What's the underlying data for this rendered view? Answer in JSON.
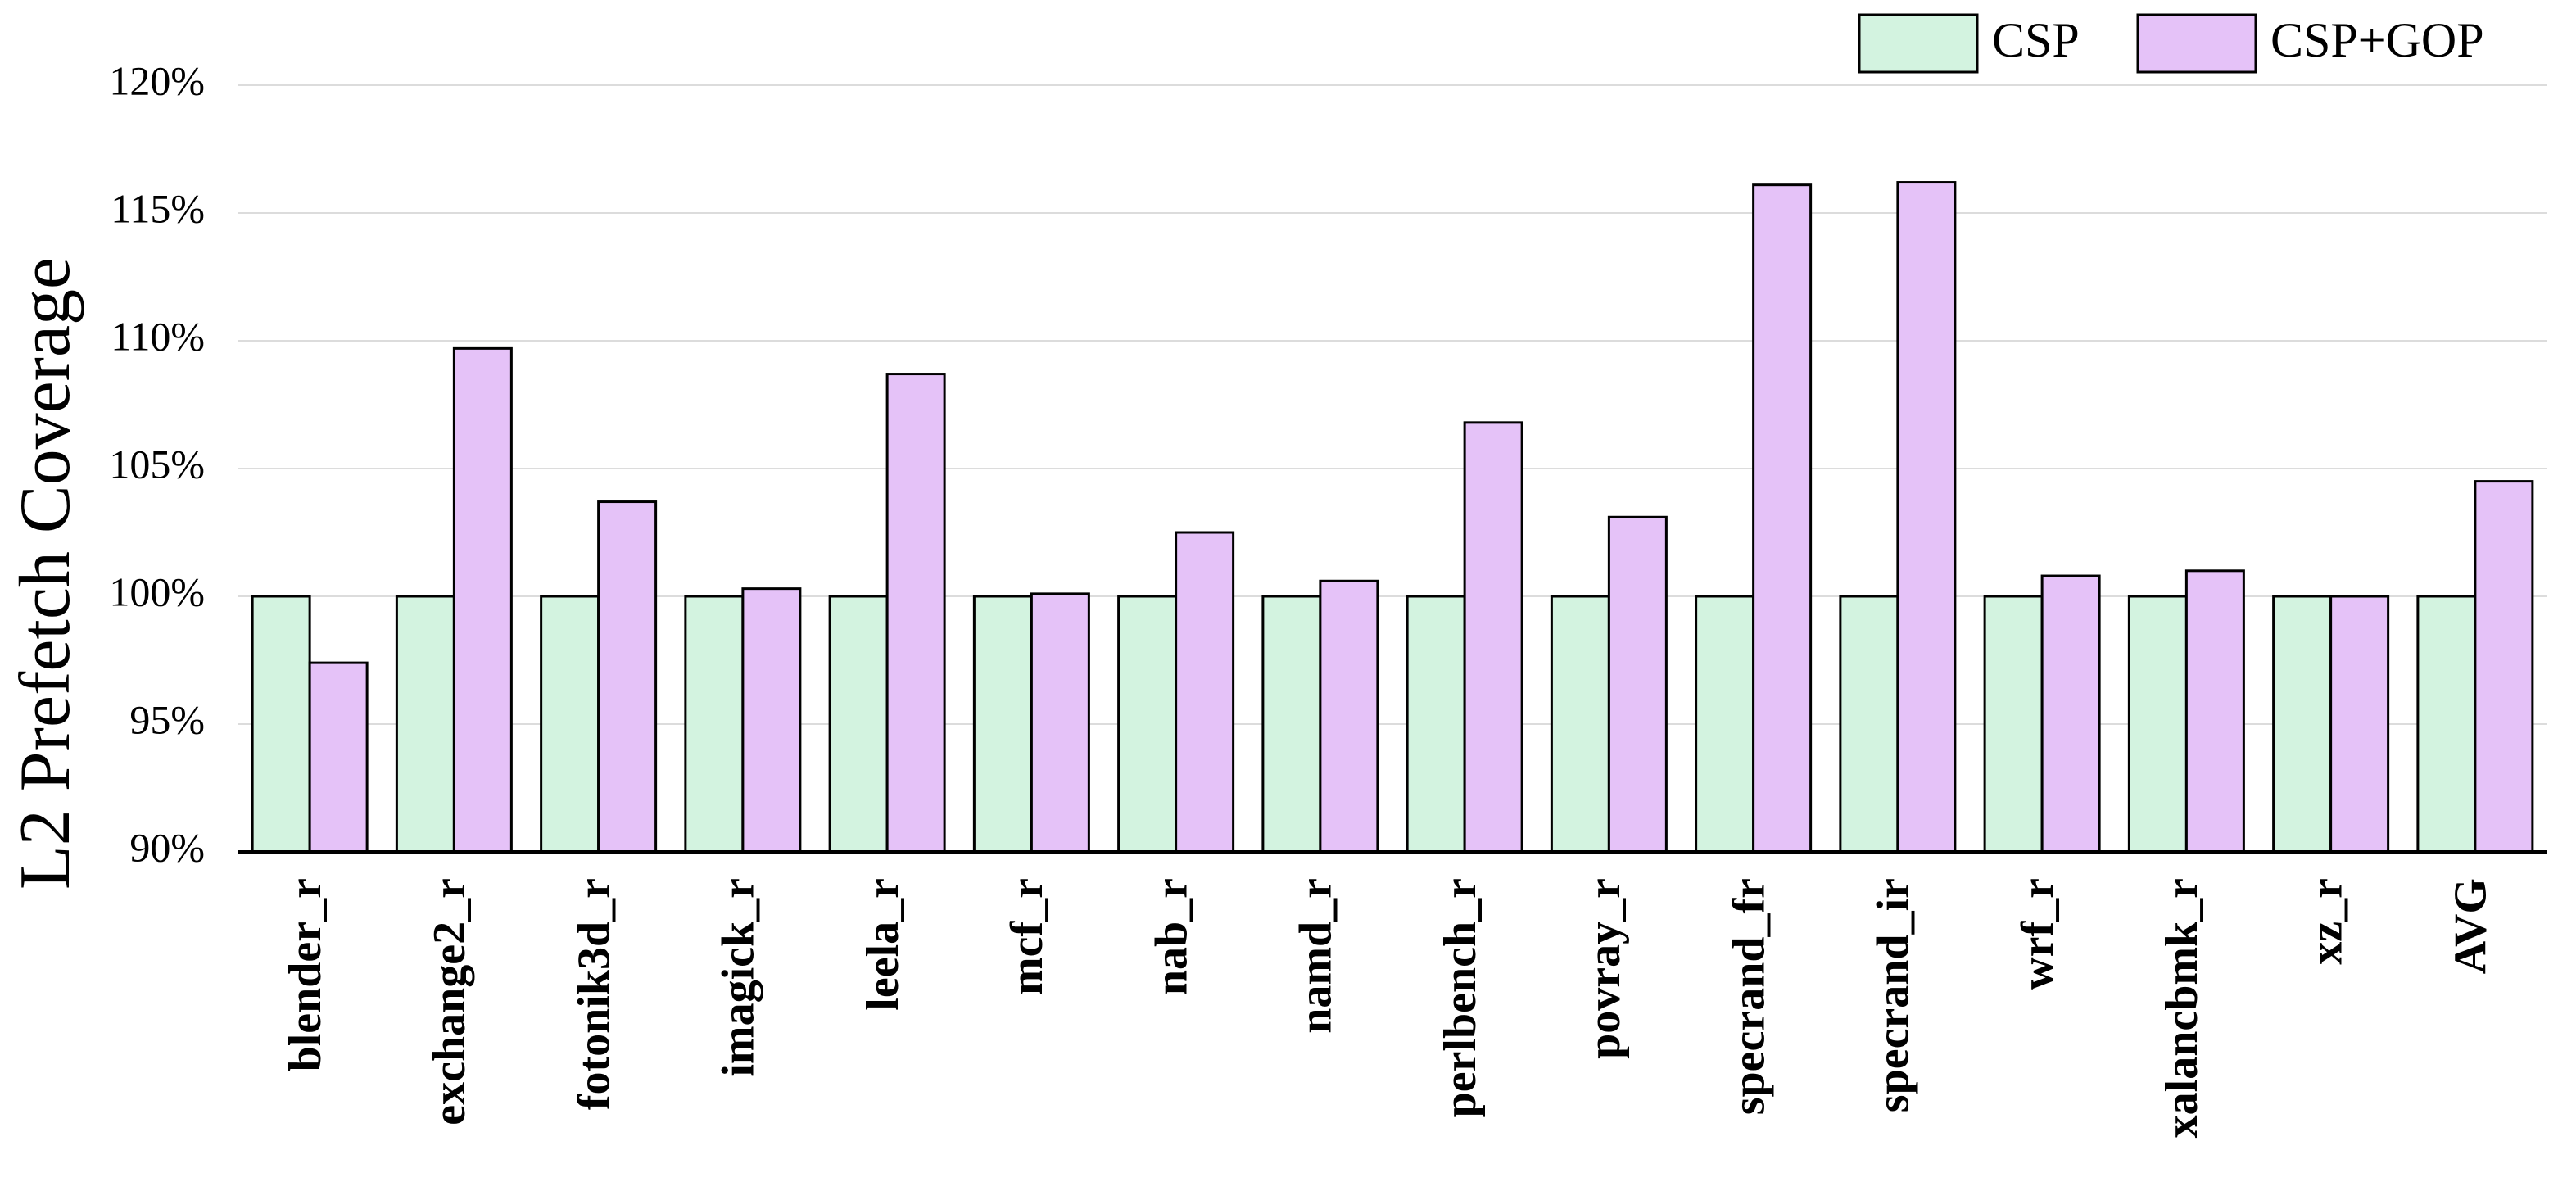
{
  "chart_data": {
    "type": "bar",
    "ylabel": "L2 Prefetch Coverage",
    "categories": [
      "blender_r",
      "exchange2_r",
      "fotonik3d_r",
      "imagick_r",
      "leela_r",
      "mcf_r",
      "nab_r",
      "namd_r",
      "perlbench_r",
      "povray_r",
      "specrand_fr",
      "specrand_ir",
      "wrf_r",
      "xalancbmk_r",
      "xz_r",
      "AVG"
    ],
    "series": [
      {
        "name": "CSP",
        "color": "#d3f3e0",
        "values": [
          100,
          100,
          100,
          100,
          100,
          100,
          100,
          100,
          100,
          100,
          100,
          100,
          100,
          100,
          100,
          100
        ]
      },
      {
        "name": "CSP+GOP",
        "color": "#e5c2f8",
        "values": [
          97.4,
          109.7,
          103.7,
          100.3,
          108.7,
          100.1,
          102.5,
          100.6,
          106.8,
          103.1,
          116.1,
          116.2,
          100.8,
          101.0,
          100.0,
          104.5
        ]
      }
    ],
    "ylim": [
      90,
      120
    ],
    "yticks": [
      {
        "value": 90,
        "label": "90%"
      },
      {
        "value": 95,
        "label": "95%"
      },
      {
        "value": 100,
        "label": "100%"
      },
      {
        "value": 105,
        "label": "105%"
      },
      {
        "value": 110,
        "label": "110%"
      },
      {
        "value": 115,
        "label": "115%"
      },
      {
        "value": 120,
        "label": "120%"
      }
    ],
    "grid": true,
    "legend": "upper right"
  }
}
